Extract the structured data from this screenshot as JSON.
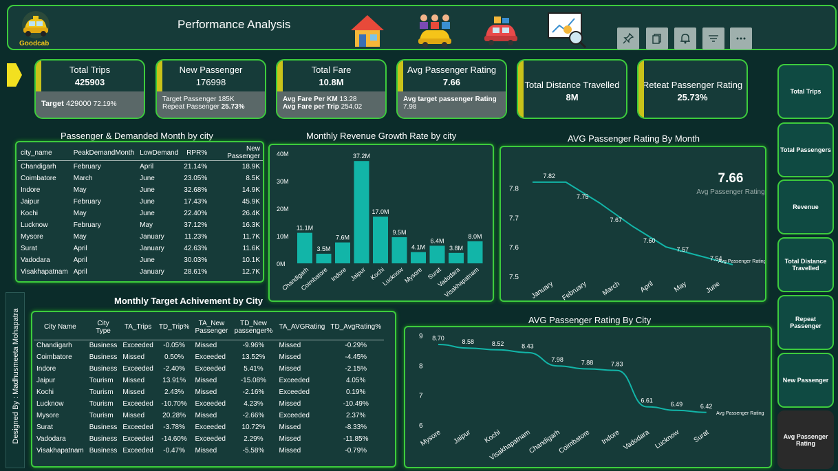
{
  "header": {
    "title": "Performance Analysis",
    "logo_text": "Goodcab"
  },
  "kpis": [
    {
      "label": "Total Trips",
      "value": "425903",
      "sub1_bold": "Target",
      "sub1": "429000",
      "sub1_pct": "72.19%"
    },
    {
      "label": "New Passenger",
      "value": "176998",
      "sub1": "Target Passenger 185K",
      "sub2": "Repeat Passenger",
      "sub2_val": "25.73%"
    },
    {
      "label": "Total Fare",
      "value": "10.8M",
      "sub1": "Avg Fare Per KM",
      "sub1_val": "13.28",
      "sub2": "Avg Fare per Trip",
      "sub2_val": "254.02"
    },
    {
      "label": "Avg Passenger Rating",
      "value": "7.66",
      "sub1": "Avg target passenger Rating",
      "sub2": "7.98"
    },
    {
      "label": "Total Distance Travelled",
      "value": "8M"
    },
    {
      "label": "Reteat Passenger Rating",
      "value": "25.73%"
    }
  ],
  "sidebar": [
    "Total Trips",
    "Total Passengers",
    "Revenue",
    "Total Distance Travelled",
    "Repeat Passenger",
    "New Passenger",
    "Avg Passenger Rating"
  ],
  "designer": "Designed By : Madhusmeeta Mohapatra",
  "table1": {
    "title": "Passenger &  Demanded Month by city",
    "headers": [
      "city_name",
      "PeakDemandMonth",
      "LowDemand",
      "RPR%",
      "New Passenger"
    ],
    "rows": [
      [
        "Chandigarh",
        "February",
        "April",
        "21.14%",
        "18.9K"
      ],
      [
        "Coimbatore",
        "March",
        "June",
        "23.05%",
        "8.5K"
      ],
      [
        "Indore",
        "May",
        "June",
        "32.68%",
        "14.9K"
      ],
      [
        "Jaipur",
        "February",
        "June",
        "17.43%",
        "45.9K"
      ],
      [
        "Kochi",
        "May",
        "June",
        "22.40%",
        "26.4K"
      ],
      [
        "Lucknow",
        "February",
        "May",
        "37.12%",
        "16.3K"
      ],
      [
        "Mysore",
        "May",
        "January",
        "11.23%",
        "11.7K"
      ],
      [
        "Surat",
        "April",
        "January",
        "42.63%",
        "11.6K"
      ],
      [
        "Vadodara",
        "April",
        "June",
        "30.03%",
        "10.1K"
      ],
      [
        "Visakhapatnam",
        "April",
        "January",
        "28.61%",
        "12.7K"
      ]
    ]
  },
  "table2": {
    "title": "Monthly Target Achivement by City",
    "headers": [
      "City Name",
      "City Type",
      "TA_Trips",
      "TD_Trip%",
      "TA_New Passenger",
      "TD_New passenger%",
      "TA_AVGRating",
      "TD_AvgRating%"
    ],
    "rows": [
      [
        "Chandigarh",
        "Business",
        "Exceeded",
        "-0.05%",
        "Missed",
        "-9.96%",
        "Missed",
        "-0.29%"
      ],
      [
        "Coimbatore",
        "Business",
        "Missed",
        "0.50%",
        "Exceeded",
        "13.52%",
        "Missed",
        "-4.45%"
      ],
      [
        "Indore",
        "Business",
        "Exceeded",
        "-2.40%",
        "Exceeded",
        "5.41%",
        "Missed",
        "-2.15%"
      ],
      [
        "Jaipur",
        "Tourism",
        "Missed",
        "13.91%",
        "Missed",
        "-15.08%",
        "Exceeded",
        "4.05%"
      ],
      [
        "Kochi",
        "Tourism",
        "Missed",
        "2.43%",
        "Missed",
        "-2.16%",
        "Exceeded",
        "0.19%"
      ],
      [
        "Lucknow",
        "Tourism",
        "Exceeded",
        "-10.70%",
        "Exceeded",
        "4.23%",
        "Missed",
        "-10.49%"
      ],
      [
        "Mysore",
        "Tourism",
        "Missed",
        "20.28%",
        "Missed",
        "-2.66%",
        "Exceeded",
        "2.37%"
      ],
      [
        "Surat",
        "Business",
        "Exceeded",
        "-3.78%",
        "Exceeded",
        "10.72%",
        "Missed",
        "-8.33%"
      ],
      [
        "Vadodara",
        "Business",
        "Exceeded",
        "-14.60%",
        "Exceeded",
        "2.29%",
        "Missed",
        "-11.85%"
      ],
      [
        "Visakhapatnam",
        "Business",
        "Exceeded",
        "-0.47%",
        "Missed",
        "-5.58%",
        "Missed",
        "-0.79%"
      ]
    ]
  },
  "chart_data": [
    {
      "type": "bar",
      "title": "Monthly Revenue Growth Rate by city",
      "categories": [
        "Chandigarh",
        "Coimbatore",
        "Indore",
        "Jaipur",
        "Kochi",
        "Lucknow",
        "Mysore",
        "Surat",
        "Vadodara",
        "Visakhapatnam"
      ],
      "values": [
        11.1,
        3.5,
        7.6,
        37.2,
        17.0,
        9.5,
        4.1,
        6.4,
        3.8,
        8.0
      ],
      "labels": [
        "11.1M",
        "3.5M",
        "7.6M",
        "37.2M",
        "17.0M",
        "9.5M",
        "4.1M",
        "6.4M",
        "3.8M",
        "8.0M"
      ],
      "yticks": [
        "0M",
        "10M",
        "20M",
        "30M",
        "40M"
      ],
      "ylim": [
        0,
        40
      ],
      "color": "#12b5a8"
    },
    {
      "type": "line",
      "title": "AVG Passenger Rating By  Month",
      "categories": [
        "January",
        "February",
        "March",
        "April",
        "May",
        "June"
      ],
      "values": [
        7.82,
        7.75,
        7.67,
        7.6,
        7.57,
        7.54
      ],
      "labels": [
        "7.82",
        "7.75",
        "7.67",
        "7.60",
        "7.57",
        "7.54"
      ],
      "yticks": [
        "7.5",
        "7.6",
        "7.7",
        "7.8"
      ],
      "ylim": [
        7.5,
        7.85
      ],
      "series_label": "Avg Passenger Rating",
      "kpi_value": "7.66",
      "kpi_label": "Avg Passenger Rating",
      "color": "#12b5a8"
    },
    {
      "type": "line",
      "title": "AVG Passenger Rating By  City",
      "categories": [
        "Mysore",
        "Jaipur",
        "Kochi",
        "Visakhapatnam",
        "Chandigarh",
        "Coimbatore",
        "Indore",
        "Vadodara",
        "Lucknow",
        "Surat"
      ],
      "values": [
        8.7,
        8.58,
        8.52,
        8.43,
        7.98,
        7.88,
        7.83,
        6.61,
        6.49,
        6.42
      ],
      "labels": [
        "8.70",
        "8.58",
        "8.52",
        "8.43",
        "7.98",
        "7.88",
        "7.83",
        "6.61",
        "6.49",
        "6.42"
      ],
      "yticks": [
        "6",
        "7",
        "8",
        "9"
      ],
      "ylim": [
        6,
        9
      ],
      "series_label": "Avg Passenger Rating",
      "color": "#12b5a8"
    }
  ]
}
